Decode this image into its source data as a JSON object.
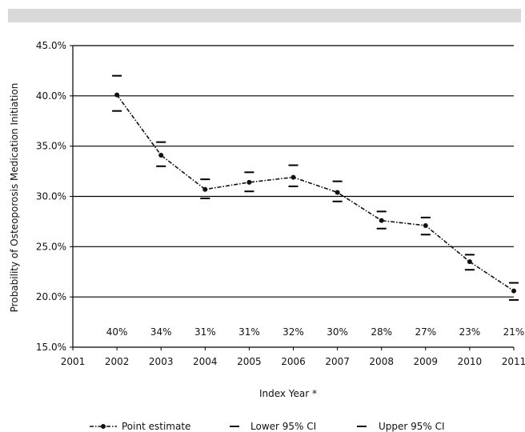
{
  "chart_data": {
    "type": "line",
    "xlabel": "Index Year *",
    "ylabel": "Probability of Osteoporosis Medication Initiation",
    "x_ticks": [
      "2001",
      "2002",
      "2003",
      "2004",
      "2005",
      "2006",
      "2007",
      "2008",
      "2009",
      "2010",
      "2011"
    ],
    "y_ticks": [
      "15.0%",
      "20.0%",
      "25.0%",
      "30.0%",
      "35.0%",
      "40.0%",
      "45.0%"
    ],
    "ylim": [
      15,
      45
    ],
    "xlim": [
      2001,
      2011
    ],
    "grid": "horizontal",
    "x": [
      2002,
      2003,
      2004,
      2005,
      2006,
      2007,
      2008,
      2009,
      2010,
      2011
    ],
    "series": [
      {
        "name": "Point estimate",
        "values": [
          40.1,
          34.1,
          30.7,
          31.4,
          31.9,
          30.4,
          27.6,
          27.1,
          23.5,
          20.6
        ]
      },
      {
        "name": "Lower 95% CI",
        "values": [
          38.5,
          33.0,
          29.8,
          30.5,
          31.0,
          29.5,
          26.8,
          26.2,
          22.7,
          19.7
        ]
      },
      {
        "name": "Upper 95% CI",
        "values": [
          42.0,
          35.4,
          31.7,
          32.4,
          33.1,
          31.5,
          28.5,
          27.9,
          24.2,
          21.4
        ]
      }
    ],
    "data_labels": [
      "40%",
      "34%",
      "31%",
      "31%",
      "32%",
      "30%",
      "28%",
      "27%",
      "23%",
      "21%"
    ],
    "legend_position": "bottom"
  },
  "legend": {
    "point_label": "Point estimate",
    "lower_label": "Lower 95% CI",
    "upper_label": "Upper 95% CI"
  }
}
